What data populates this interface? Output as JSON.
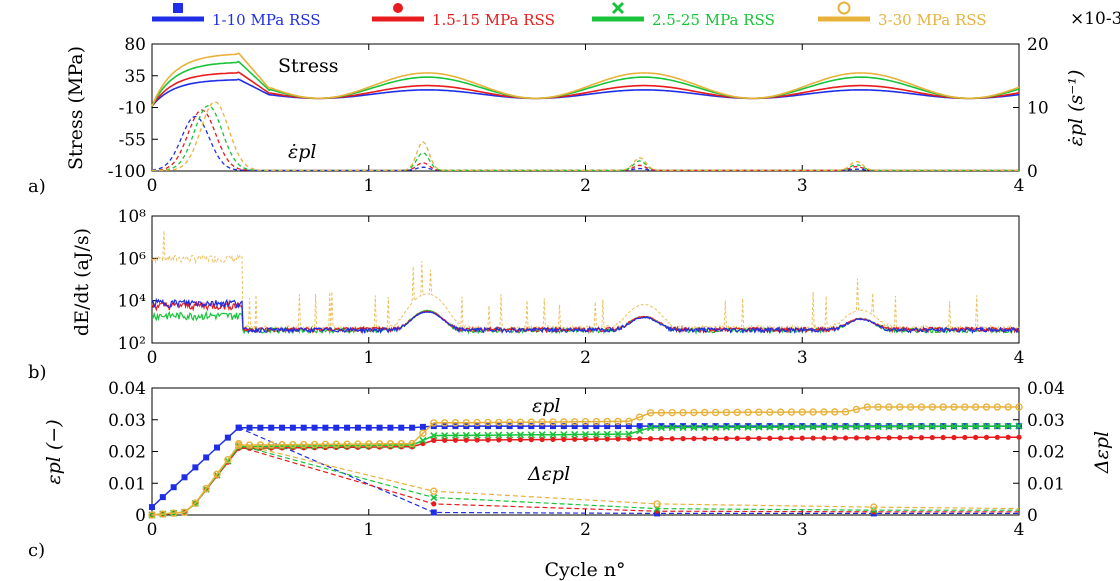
{
  "chart_data": [
    {
      "panel": "a)",
      "type": "line",
      "xlim": [
        0,
        4
      ],
      "x_ticks": [
        "0",
        "1",
        "2",
        "3",
        "4"
      ],
      "ylabel": "Stress (MPa)",
      "ylim": [
        -100,
        80
      ],
      "y_ticks": [
        "-100",
        "-55",
        "-10",
        "35",
        "80"
      ],
      "ylabel_right": "ε̇pl (s⁻¹)",
      "ylim_right": [
        0,
        0.02
      ],
      "y_ticks_right": [
        "0",
        "10",
        "20"
      ],
      "right_multiplier": "×10-3",
      "annotations": [
        "Stress",
        "ε̇pl"
      ],
      "legend_position": "top",
      "legend": [
        {
          "name": "1-10 MPa RSS",
          "color": "#1f2ee6",
          "marker": "square"
        },
        {
          "name": "1.5-15 MPa RSS",
          "color": "#e81c1c",
          "marker": "circle-filled"
        },
        {
          "name": "2.5-25 MPa RSS",
          "color": "#19c43a",
          "marker": "x"
        },
        {
          "name": "3-30 MPa RSS",
          "color": "#e8b23a",
          "marker": "circle-open"
        }
      ],
      "series": [
        {
          "name": "1-10 MPa RSS",
          "stress_base": 3,
          "stress_amp": 12,
          "stress_cycle1_peak": 30,
          "rate_peaks": [
            0.0085,
            0.0005,
            0.0003,
            0.0002
          ]
        },
        {
          "name": "1.5-15 MPa RSS",
          "stress_base": 3,
          "stress_amp": 18,
          "stress_cycle1_peak": 40,
          "rate_peaks": [
            0.0095,
            0.0012,
            0.0008,
            0.0006
          ]
        },
        {
          "name": "2.5-25 MPa RSS",
          "stress_base": 3,
          "stress_amp": 30,
          "stress_cycle1_peak": 55,
          "rate_peaks": [
            0.0102,
            0.0028,
            0.0015,
            0.0009
          ]
        },
        {
          "name": "3-30 MPa RSS",
          "stress_base": 3,
          "stress_amp": 36,
          "stress_cycle1_peak": 67,
          "rate_peaks": [
            0.0108,
            0.0045,
            0.002,
            0.0014
          ]
        }
      ]
    },
    {
      "panel": "b)",
      "type": "line",
      "xlim": [
        0,
        4
      ],
      "x_ticks": [
        "0",
        "1",
        "2",
        "3",
        "4"
      ],
      "ylabel": "dE/dt (aJ/s)",
      "yscale": "log",
      "ylim": [
        100,
        100000000
      ],
      "y_ticks": [
        "10²",
        "10⁴",
        "10⁶",
        "10⁸"
      ],
      "series": [
        {
          "name": "1-10 MPa RSS",
          "baseline": 400,
          "cycle1_level": 8000,
          "peaks": [
            2500,
            1200,
            900
          ]
        },
        {
          "name": "1.5-15 MPa RSS",
          "baseline": 420,
          "cycle1_level": 6000,
          "peaks": [
            2700,
            1300,
            950
          ]
        },
        {
          "name": "2.5-25 MPa RSS",
          "baseline": 380,
          "cycle1_level": 2000,
          "peaks": [
            3000,
            1400,
            1000
          ]
        },
        {
          "name": "3-30 MPa RSS",
          "baseline": 500,
          "cycle1_level": 1000000,
          "peaks": [
            20000,
            6000,
            3000
          ]
        }
      ]
    },
    {
      "panel": "c)",
      "type": "line",
      "xlabel": "Cycle n°",
      "xlim": [
        0,
        4
      ],
      "x_ticks": [
        "0",
        "1",
        "2",
        "3",
        "4"
      ],
      "ylabel": "εpl (−)",
      "ylim": [
        0,
        0.04
      ],
      "y_ticks": [
        "0",
        "0.01",
        "0.02",
        "0.03",
        "0.04"
      ],
      "ylabel_right": "Δεpl",
      "y_ticks_right": [
        "0",
        "0.01",
        "0.02",
        "0.03",
        "0.04"
      ],
      "annotations": [
        "εpl",
        "Δεpl"
      ],
      "series": [
        {
          "name": "1-10 MPa RSS",
          "eps_pl": [
            [
              0,
              0.0025
            ],
            [
              0.4,
              0.0275
            ],
            [
              1.2,
              0.0275
            ],
            [
              1.3,
              0.028
            ],
            [
              4,
              0.028
            ]
          ],
          "delta_eps_pl": [
            [
              0.4,
              0.0275
            ],
            [
              1.3,
              0.0008
            ],
            [
              2.33,
              0.0005
            ],
            [
              3.33,
              0.0005
            ],
            [
              4,
              0.0005
            ]
          ]
        },
        {
          "name": "1.5-15 MPa RSS",
          "eps_pl": [
            [
              0,
              0
            ],
            [
              0.17,
              0.001
            ],
            [
              0.4,
              0.021
            ],
            [
              1.2,
              0.0215
            ],
            [
              1.3,
              0.0235
            ],
            [
              2.25,
              0.024
            ],
            [
              4,
              0.0245
            ]
          ],
          "delta_eps_pl": [
            [
              0.4,
              0.0215
            ],
            [
              1.3,
              0.0035
            ],
            [
              2.33,
              0.0012
            ],
            [
              3.33,
              0.001
            ],
            [
              4,
              0.001
            ]
          ]
        },
        {
          "name": "2.5-25 MPa RSS",
          "eps_pl": [
            [
              0,
              0
            ],
            [
              0.17,
              0.001
            ],
            [
              0.4,
              0.0215
            ],
            [
              1.2,
              0.022
            ],
            [
              1.3,
              0.025
            ],
            [
              2.2,
              0.0255
            ],
            [
              2.3,
              0.0275
            ],
            [
              4,
              0.028
            ]
          ],
          "delta_eps_pl": [
            [
              0.4,
              0.022
            ],
            [
              1.3,
              0.0055
            ],
            [
              2.33,
              0.002
            ],
            [
              3.33,
              0.0015
            ],
            [
              4,
              0.0015
            ]
          ]
        },
        {
          "name": "3-30 MPa RSS",
          "eps_pl": [
            [
              0,
              0
            ],
            [
              0.17,
              0.001
            ],
            [
              0.4,
              0.022
            ],
            [
              1.2,
              0.0225
            ],
            [
              1.3,
              0.029
            ],
            [
              2.2,
              0.0295
            ],
            [
              2.3,
              0.0322
            ],
            [
              3.2,
              0.0325
            ],
            [
              3.3,
              0.034
            ],
            [
              4,
              0.034
            ]
          ],
          "delta_eps_pl": [
            [
              0.4,
              0.0225
            ],
            [
              1.3,
              0.0075
            ],
            [
              2.33,
              0.0035
            ],
            [
              3.33,
              0.0025
            ],
            [
              4,
              0.002
            ]
          ]
        }
      ]
    }
  ]
}
